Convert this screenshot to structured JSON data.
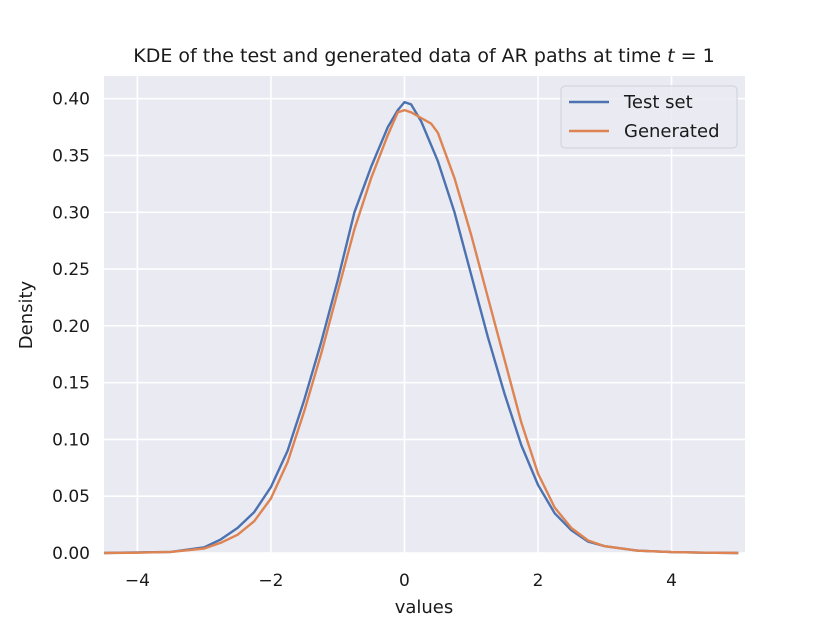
{
  "chart_data": {
    "type": "line",
    "title": "KDE of the test and generated data of AR paths at time t = 1",
    "title_parts": {
      "prefix": "KDE of the test and generated data of AR paths at time ",
      "var": "t",
      "suffix": " = 1"
    },
    "xlabel": "values",
    "ylabel": "Density",
    "xlim": [
      -4.5,
      5.1
    ],
    "ylim": [
      0.0,
      0.42
    ],
    "xticks": [
      -4,
      -2,
      0,
      2,
      4
    ],
    "xtick_labels": [
      "−4",
      "−2",
      "0",
      "2",
      "4"
    ],
    "yticks": [
      0.0,
      0.05,
      0.1,
      0.15,
      0.2,
      0.25,
      0.3,
      0.35,
      0.4
    ],
    "ytick_labels": [
      "0.00",
      "0.05",
      "0.10",
      "0.15",
      "0.20",
      "0.25",
      "0.30",
      "0.35",
      "0.40"
    ],
    "grid": true,
    "legend_position": "top-right",
    "series": [
      {
        "name": "Test set",
        "color": "#4c72b0",
        "x": [
          -4.5,
          -4.0,
          -3.5,
          -3.0,
          -2.75,
          -2.5,
          -2.25,
          -2.0,
          -1.75,
          -1.5,
          -1.25,
          -1.0,
          -0.75,
          -0.5,
          -0.25,
          -0.1,
          0.0,
          0.1,
          0.25,
          0.5,
          0.75,
          1.0,
          1.25,
          1.5,
          1.75,
          2.0,
          2.25,
          2.5,
          2.75,
          3.0,
          3.5,
          4.0,
          4.5,
          5.0
        ],
        "values": [
          0.0,
          0.0005,
          0.001,
          0.005,
          0.012,
          0.022,
          0.036,
          0.058,
          0.09,
          0.135,
          0.185,
          0.24,
          0.3,
          0.34,
          0.375,
          0.39,
          0.397,
          0.395,
          0.38,
          0.345,
          0.3,
          0.245,
          0.19,
          0.14,
          0.095,
          0.06,
          0.035,
          0.02,
          0.01,
          0.006,
          0.002,
          0.0008,
          0.0003,
          0.0
        ]
      },
      {
        "name": "Generated",
        "color": "#dd8452",
        "x": [
          -4.5,
          -4.0,
          -3.5,
          -3.0,
          -2.75,
          -2.5,
          -2.25,
          -2.0,
          -1.75,
          -1.5,
          -1.25,
          -1.0,
          -0.75,
          -0.5,
          -0.25,
          -0.1,
          0.0,
          0.1,
          0.25,
          0.4,
          0.5,
          0.75,
          1.0,
          1.25,
          1.5,
          1.75,
          2.0,
          2.25,
          2.5,
          2.75,
          3.0,
          3.5,
          4.0,
          4.5,
          5.0
        ],
        "values": [
          0.0,
          0.0003,
          0.001,
          0.004,
          0.009,
          0.016,
          0.028,
          0.048,
          0.08,
          0.125,
          0.175,
          0.23,
          0.285,
          0.33,
          0.368,
          0.388,
          0.39,
          0.388,
          0.383,
          0.378,
          0.37,
          0.33,
          0.28,
          0.225,
          0.17,
          0.115,
          0.07,
          0.04,
          0.022,
          0.011,
          0.006,
          0.002,
          0.0008,
          0.0003,
          0.0
        ]
      }
    ]
  }
}
